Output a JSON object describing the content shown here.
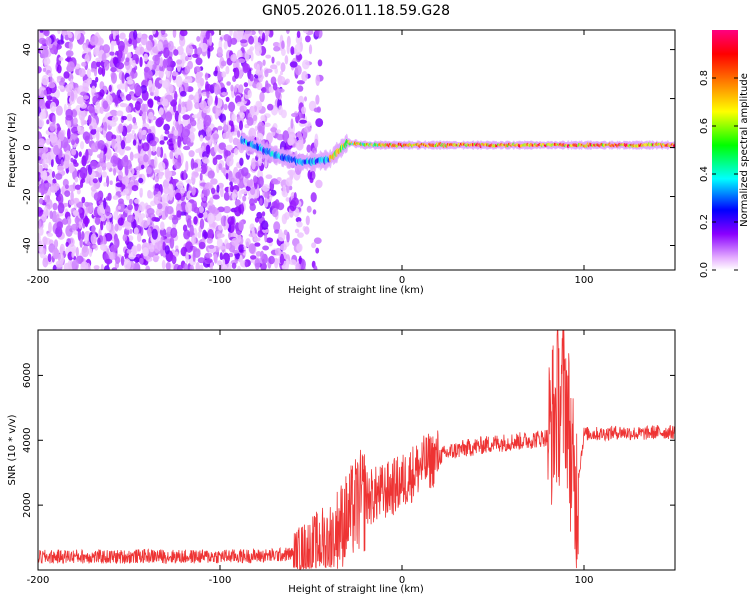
{
  "figure": {
    "title": "GN05.2026.011.18.59.G28"
  },
  "chart_data": [
    {
      "type": "heatmap",
      "xlabel": "Height of straight line (km)",
      "ylabel": "Frequency (Hz)",
      "xlim": [
        -200,
        150
      ],
      "ylim": [
        -50,
        48
      ],
      "xticks": [
        -200,
        -100,
        0,
        100
      ],
      "yticks": [
        -40,
        -20,
        0,
        20,
        40
      ],
      "colorbar": {
        "label": "Normalized spectral amplitude",
        "range": [
          0,
          1
        ],
        "ticks": [
          "0.0",
          "0.2",
          "0.4",
          "0.6",
          "0.8"
        ],
        "colors": [
          "#ffffff",
          "#d070ff",
          "#8000ff",
          "#0000ff",
          "#00ffff",
          "#00ff00",
          "#ffff00",
          "#ff8000",
          "#ff0000",
          "#ff0080"
        ]
      },
      "description_data": {
        "noise_region_x": [
          -200,
          -50
        ],
        "signal_start_x": -85,
        "signal_center_freq": [
          [
            -85,
            2
          ],
          [
            -70,
            -3
          ],
          [
            -55,
            -6
          ],
          [
            -40,
            -5
          ],
          [
            -30,
            2
          ],
          [
            -20,
            1
          ],
          [
            0,
            1
          ],
          [
            50,
            1
          ],
          [
            100,
            1
          ],
          [
            150,
            1
          ]
        ],
        "signal_peak_amplitude": 0.95
      }
    },
    {
      "type": "line",
      "xlabel": "Height of straight line (km)",
      "ylabel": "SNR (10 * v/v)",
      "xlim": [
        -200,
        150
      ],
      "ylim": [
        0,
        7400
      ],
      "xticks": [
        -200,
        -100,
        0,
        100
      ],
      "yticks": [
        2000,
        4000,
        6000
      ],
      "color": "#ee3333",
      "x": [
        -200,
        -180,
        -160,
        -140,
        -120,
        -100,
        -80,
        -70,
        -60,
        -50,
        -40,
        -30,
        -25,
        -20,
        -10,
        0,
        10,
        20,
        30,
        40,
        50,
        60,
        70,
        80,
        85,
        90,
        93,
        95,
        100,
        110,
        120,
        130,
        140,
        150
      ],
      "y": [
        400,
        420,
        400,
        430,
        410,
        420,
        430,
        450,
        500,
        700,
        1000,
        1600,
        2000,
        2200,
        2400,
        2700,
        3200,
        3500,
        3700,
        3800,
        3900,
        3950,
        4000,
        4100,
        5000,
        5500,
        3500,
        2000,
        4200,
        4200,
        4250,
        4200,
        4250,
        4250
      ]
    }
  ]
}
